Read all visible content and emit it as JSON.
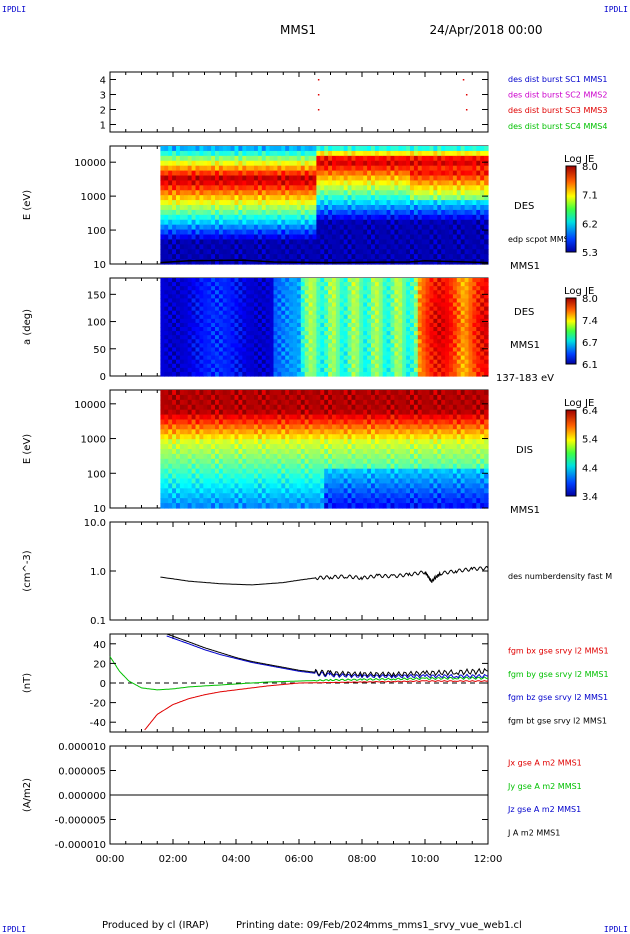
{
  "header": {
    "corner_tag": "IPDLI",
    "spacecraft": "MMS1",
    "date": "24/Apr/2018 00:00"
  },
  "footer": {
    "produced_by": "Produced by cl (IRAP)",
    "printing_date": "Printing date: 09/Feb/2024",
    "filename": "mms_mms1_srvy_vue_web1.cl"
  },
  "colors": {
    "red": "#e00000",
    "green": "#00c000",
    "blue": "#0000cc",
    "magenta": "#cc00cc",
    "black": "#000000"
  },
  "chart_data": [
    {
      "type": "scatter",
      "id": "burst",
      "ylabel": "",
      "ylim": [
        0.5,
        4.5
      ],
      "yticks": [
        "1",
        "2",
        "3",
        "4"
      ],
      "series": [
        {
          "name": "des dist burst SC1 MMS1",
          "color": "#0000cc",
          "points": []
        },
        {
          "name": "des dist burst SC2 MMS2",
          "color": "#cc00cc",
          "points": []
        },
        {
          "name": "des dist burst SC3 MMS3",
          "color": "#e00000",
          "points": [
            [
              6.6,
              3
            ],
            [
              11.3,
              3
            ],
            [
              6.6,
              2
            ],
            [
              11.3,
              2
            ],
            [
              6.6,
              4
            ],
            [
              11.2,
              4
            ]
          ]
        },
        {
          "name": "des dist burst SC4 MMS4",
          "color": "#00c000",
          "points": []
        }
      ]
    },
    {
      "type": "heatmap",
      "id": "des_energy",
      "ylabel": "E (eV)",
      "yscale": "log",
      "ylim": [
        10,
        30000
      ],
      "yticks": [
        "10",
        "100",
        "1000",
        "10000"
      ],
      "label": "DES",
      "sublabel": "MMS1",
      "overlay": "edp scpot MMS1",
      "colorbar": {
        "title": "Log JE",
        "ticks": [
          "8.0",
          "7.1",
          "6.2",
          "5.3"
        ],
        "min": 5.3,
        "max": 8.0
      }
    },
    {
      "type": "heatmap",
      "id": "des_pitch",
      "ylabel": "a (deg)",
      "ylim": [
        0,
        180
      ],
      "yticks": [
        "0",
        "50",
        "100",
        "150"
      ],
      "label": "DES",
      "sublabel": "MMS1",
      "energy_range": "137-183 eV",
      "colorbar": {
        "title": "Log JE",
        "ticks": [
          "8.0",
          "7.4",
          "6.7",
          "6.1"
        ],
        "min": 6.1,
        "max": 8.0
      }
    },
    {
      "type": "heatmap",
      "id": "dis_energy",
      "ylabel": "E (eV)",
      "yscale": "log",
      "ylim": [
        10,
        25000
      ],
      "yticks": [
        "10",
        "100",
        "1000",
        "10000"
      ],
      "label": "DIS",
      "sublabel": "MMS1",
      "colorbar": {
        "title": "Log JE",
        "ticks": [
          "6.4",
          "5.4",
          "4.4",
          "3.4"
        ],
        "min": 3.4,
        "max": 6.4
      }
    },
    {
      "type": "line",
      "id": "density",
      "ylabel": "(cm^-3)",
      "yscale": "log",
      "ylim": [
        0.1,
        10
      ],
      "yticks": [
        "0.1",
        "1.0",
        "10.0"
      ],
      "series": [
        {
          "name": "des numberdensity fast M",
          "color": "#000000",
          "x": [
            1.6,
            2.5,
            3.5,
            4.5,
            5.5,
            6.0,
            6.5,
            7.0,
            7.5,
            8.0,
            8.5,
            9.0,
            9.5,
            10.0,
            10.2,
            10.5,
            11.0,
            11.5,
            12.0
          ],
          "y": [
            0.75,
            0.62,
            0.55,
            0.52,
            0.58,
            0.65,
            0.72,
            0.75,
            0.78,
            0.72,
            0.8,
            0.78,
            0.85,
            0.95,
            0.6,
            0.9,
            1.0,
            1.1,
            1.15
          ]
        }
      ]
    },
    {
      "type": "line",
      "id": "fgm",
      "ylabel": "(nT)",
      "ylim": [
        -50,
        50
      ],
      "yticks": [
        "-40",
        "-20",
        "0",
        "20",
        "40"
      ],
      "series": [
        {
          "name": "fgm bx gse srvy l2 MMS1",
          "color": "#e00000",
          "x": [
            1.1,
            1.5,
            2.0,
            2.5,
            3.0,
            3.5,
            4.0,
            4.5,
            5.0,
            5.5,
            6.0,
            7.0,
            8.0,
            9.0,
            10.0,
            11.0,
            12.0
          ],
          "y": [
            -48,
            -32,
            -22,
            -16,
            -12,
            -9,
            -7,
            -5,
            -3,
            -1.5,
            0,
            0.5,
            1,
            1.5,
            2,
            2,
            2
          ]
        },
        {
          "name": "fgm by gse srvy l2 MMS1",
          "color": "#00c000",
          "x": [
            0,
            0.3,
            0.6,
            1.0,
            1.5,
            2.0,
            2.5,
            3.0,
            4.0,
            5.0,
            6.0,
            7.0,
            8.0,
            9.0,
            10.0,
            11.0,
            12.0
          ],
          "y": [
            27,
            12,
            2,
            -5,
            -7,
            -6,
            -4,
            -3,
            -1,
            1,
            2,
            3,
            3.5,
            4,
            4.5,
            5,
            5
          ]
        },
        {
          "name": "fgm bz gse srvy l2 MMS1",
          "color": "#0000cc",
          "x": [
            1.8,
            2.5,
            3.0,
            3.5,
            4.0,
            4.5,
            5.0,
            5.5,
            6.0,
            6.5,
            7.0,
            8.0,
            9.0,
            10.0,
            11.0,
            12.0
          ],
          "y": [
            48,
            40,
            34,
            29,
            25,
            21,
            18,
            15,
            12,
            10,
            8,
            7,
            7,
            7,
            7,
            7
          ]
        },
        {
          "name": "fgm bt gse srvy l2 MMS1",
          "color": "#000000",
          "x": [
            1.8,
            2.5,
            3.0,
            3.5,
            4.0,
            4.5,
            5.0,
            5.5,
            6.0,
            6.5,
            7.0,
            8.0,
            9.0,
            10.0,
            11.0,
            12.0
          ],
          "y": [
            50,
            42,
            36,
            31,
            26,
            22,
            19,
            16,
            13,
            11,
            10,
            9,
            9,
            10,
            11,
            12
          ]
        }
      ]
    },
    {
      "type": "line",
      "id": "current",
      "ylabel": "(A/m2)",
      "ylim": [
        -1e-05,
        1e-05
      ],
      "yticks": [
        "-0.000010",
        "-0.000005",
        "0.000000",
        "0.000005",
        "0.000010"
      ],
      "xticks": [
        "00:00",
        "02:00",
        "04:00",
        "06:00",
        "08:00",
        "10:00",
        "12:00"
      ],
      "series": [
        {
          "name": "Jx gse A m2 MMS1",
          "color": "#e00000",
          "x": [
            0,
            12
          ],
          "y": [
            0,
            0
          ]
        },
        {
          "name": "Jy gse A m2 MMS1",
          "color": "#00c000",
          "x": [
            0,
            12
          ],
          "y": [
            0,
            0
          ]
        },
        {
          "name": "Jz gse A m2 MMS1",
          "color": "#0000cc",
          "x": [
            0,
            12
          ],
          "y": [
            0,
            0
          ]
        },
        {
          "name": "J A m2 MMS1",
          "color": "#000000",
          "x": [
            0,
            12
          ],
          "y": [
            0,
            0
          ]
        }
      ]
    }
  ]
}
